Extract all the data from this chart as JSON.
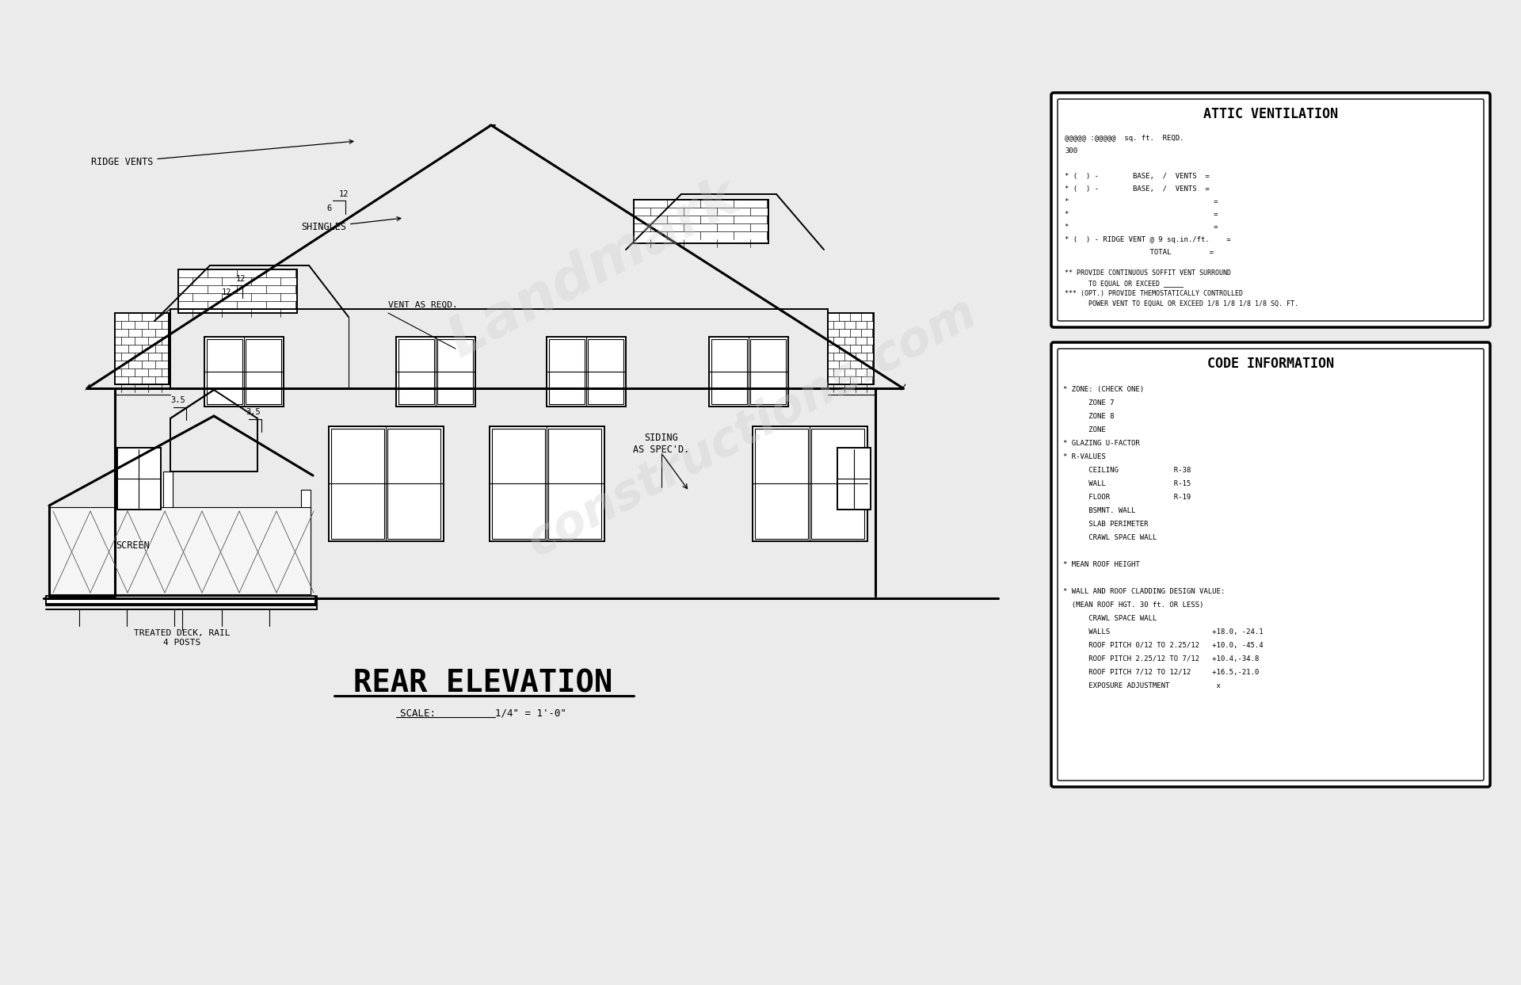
{
  "bg_color": "#ebebeb",
  "line_color": "#000000",
  "title": "REAR ELEVATION",
  "scale_text": "SCALE:          1/4\" = 1'-0\"",
  "attic_title": "ATTIC VENTILATION",
  "attic_lines": [
    "@@@@@ :@@@@@  sq. ft.  REQD.",
    "300",
    "",
    "* (  ) -        BASE,  /  VENTS  =",
    "* (  ) -        BASE,  /  VENTS  =",
    "*                                  =",
    "*                                  =",
    "*                                  =",
    "* (  ) - RIDGE VENT @ 9 sq.in./ft.    =",
    "                    TOTAL         ="
  ],
  "attic_notes": [
    "** PROVIDE CONTINUOUS SOFFIT VENT SURROUND",
    "      TO EQUAL OR EXCEED _____",
    "*** (OPT.) PROVIDE THEMOSTATICALLY CONTROLLED",
    "      POWER VENT TO EQUAL OR EXCEED 1/8 1/8 1/8 1/8 SQ. FT."
  ],
  "code_title": "CODE INFORMATION",
  "code_lines": [
    "* ZONE: (CHECK ONE)",
    "      ZONE 7",
    "      ZONE 8",
    "      ZONE",
    "* GLAZING U-FACTOR",
    "* R-VALUES",
    "      CEILING             R-38",
    "      WALL                R-15",
    "      FLOOR               R-19",
    "      BSMNT. WALL",
    "      SLAB PERIMETER",
    "      CRAWL SPACE WALL",
    "",
    "* MEAN ROOF HEIGHT",
    "",
    "* WALL AND ROOF CLADDING DESIGN VALUE:",
    "  (MEAN ROOF HGT. 30 ft. OR LESS)",
    "      CRAWL SPACE WALL",
    "      WALLS                        +18.0, -24.1",
    "      ROOF PITCH 0/12 TO 2.25/12   +10.0, -45.4",
    "      ROOF PITCH 2.25/12 TO 7/12   +10.4,-34.8",
    "      ROOF PITCH 7/12 TO 12/12     +16.5,-21.0",
    "      EXPOSURE ADJUSTMENT           x"
  ],
  "label_ridge_vents": "RIDGE VENTS",
  "label_shingles": "SHINGLES",
  "label_vent": "VENT AS REQD.",
  "label_screen": "SCREEN",
  "label_siding": "SIDING\nAS SPEC'D.",
  "label_deck": "TREATED DECK, RAIL\n4 POSTS"
}
